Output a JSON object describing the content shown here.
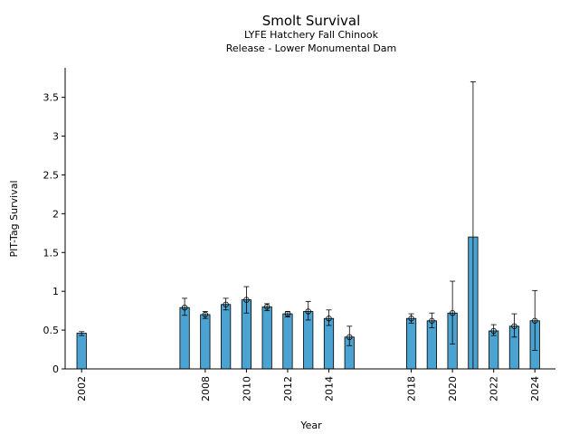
{
  "chart_data": {
    "type": "bar",
    "title": "Smolt Survival",
    "subtitle": [
      "LYFE Hatchery Fall Chinook",
      "Release - Lower Monumental Dam"
    ],
    "xlabel": "Year",
    "ylabel": "PIT-Tag Survival",
    "xlim": [
      2001.2,
      2025
    ],
    "ylim": [
      0,
      3.88
    ],
    "yticks": [
      0,
      0.5,
      1,
      1.5,
      2,
      2.5,
      3,
      3.5
    ],
    "ytick_labels": [
      "0",
      "0.5",
      "1",
      "1.5",
      "2",
      "2.5",
      "3",
      "3.5"
    ],
    "xticks": [
      2002,
      2008,
      2010,
      2012,
      2014,
      2018,
      2020,
      2022,
      2024
    ],
    "xtick_labels": [
      "2002",
      "2008",
      "2010",
      "2012",
      "2014",
      "2018",
      "2020",
      "2022",
      "2024"
    ],
    "bar_color": "#4ba3d1",
    "grid": false,
    "legend": "none",
    "points": [
      {
        "year": 2002,
        "value": 0.46,
        "low": 0.43,
        "high": 0.48,
        "marker": false
      },
      {
        "year": 2007,
        "value": 0.79,
        "low": 0.69,
        "high": 0.91,
        "marker": true
      },
      {
        "year": 2008,
        "value": 0.7,
        "low": 0.65,
        "high": 0.74,
        "marker": true
      },
      {
        "year": 2009,
        "value": 0.83,
        "low": 0.76,
        "high": 0.91,
        "marker": true
      },
      {
        "year": 2010,
        "value": 0.89,
        "low": 0.72,
        "high": 1.06,
        "marker": true
      },
      {
        "year": 2011,
        "value": 0.8,
        "low": 0.75,
        "high": 0.84,
        "marker": true
      },
      {
        "year": 2012,
        "value": 0.71,
        "low": 0.67,
        "high": 0.74,
        "marker": true
      },
      {
        "year": 2013,
        "value": 0.74,
        "low": 0.63,
        "high": 0.87,
        "marker": true
      },
      {
        "year": 2014,
        "value": 0.65,
        "low": 0.56,
        "high": 0.76,
        "marker": true
      },
      {
        "year": 2015,
        "value": 0.41,
        "low": 0.3,
        "high": 0.55,
        "marker": true
      },
      {
        "year": 2018,
        "value": 0.65,
        "low": 0.59,
        "high": 0.71,
        "marker": true
      },
      {
        "year": 2019,
        "value": 0.62,
        "low": 0.53,
        "high": 0.72,
        "marker": true
      },
      {
        "year": 2020,
        "value": 0.72,
        "low": 0.32,
        "high": 1.13,
        "marker": true
      },
      {
        "year": 2021,
        "value": 1.7,
        "low": 0.0,
        "high": 3.7,
        "marker": false
      },
      {
        "year": 2022,
        "value": 0.49,
        "low": 0.43,
        "high": 0.57,
        "marker": true
      },
      {
        "year": 2023,
        "value": 0.55,
        "low": 0.41,
        "high": 0.71,
        "marker": true
      },
      {
        "year": 2024,
        "value": 0.62,
        "low": 0.24,
        "high": 1.01,
        "marker": true
      }
    ]
  }
}
